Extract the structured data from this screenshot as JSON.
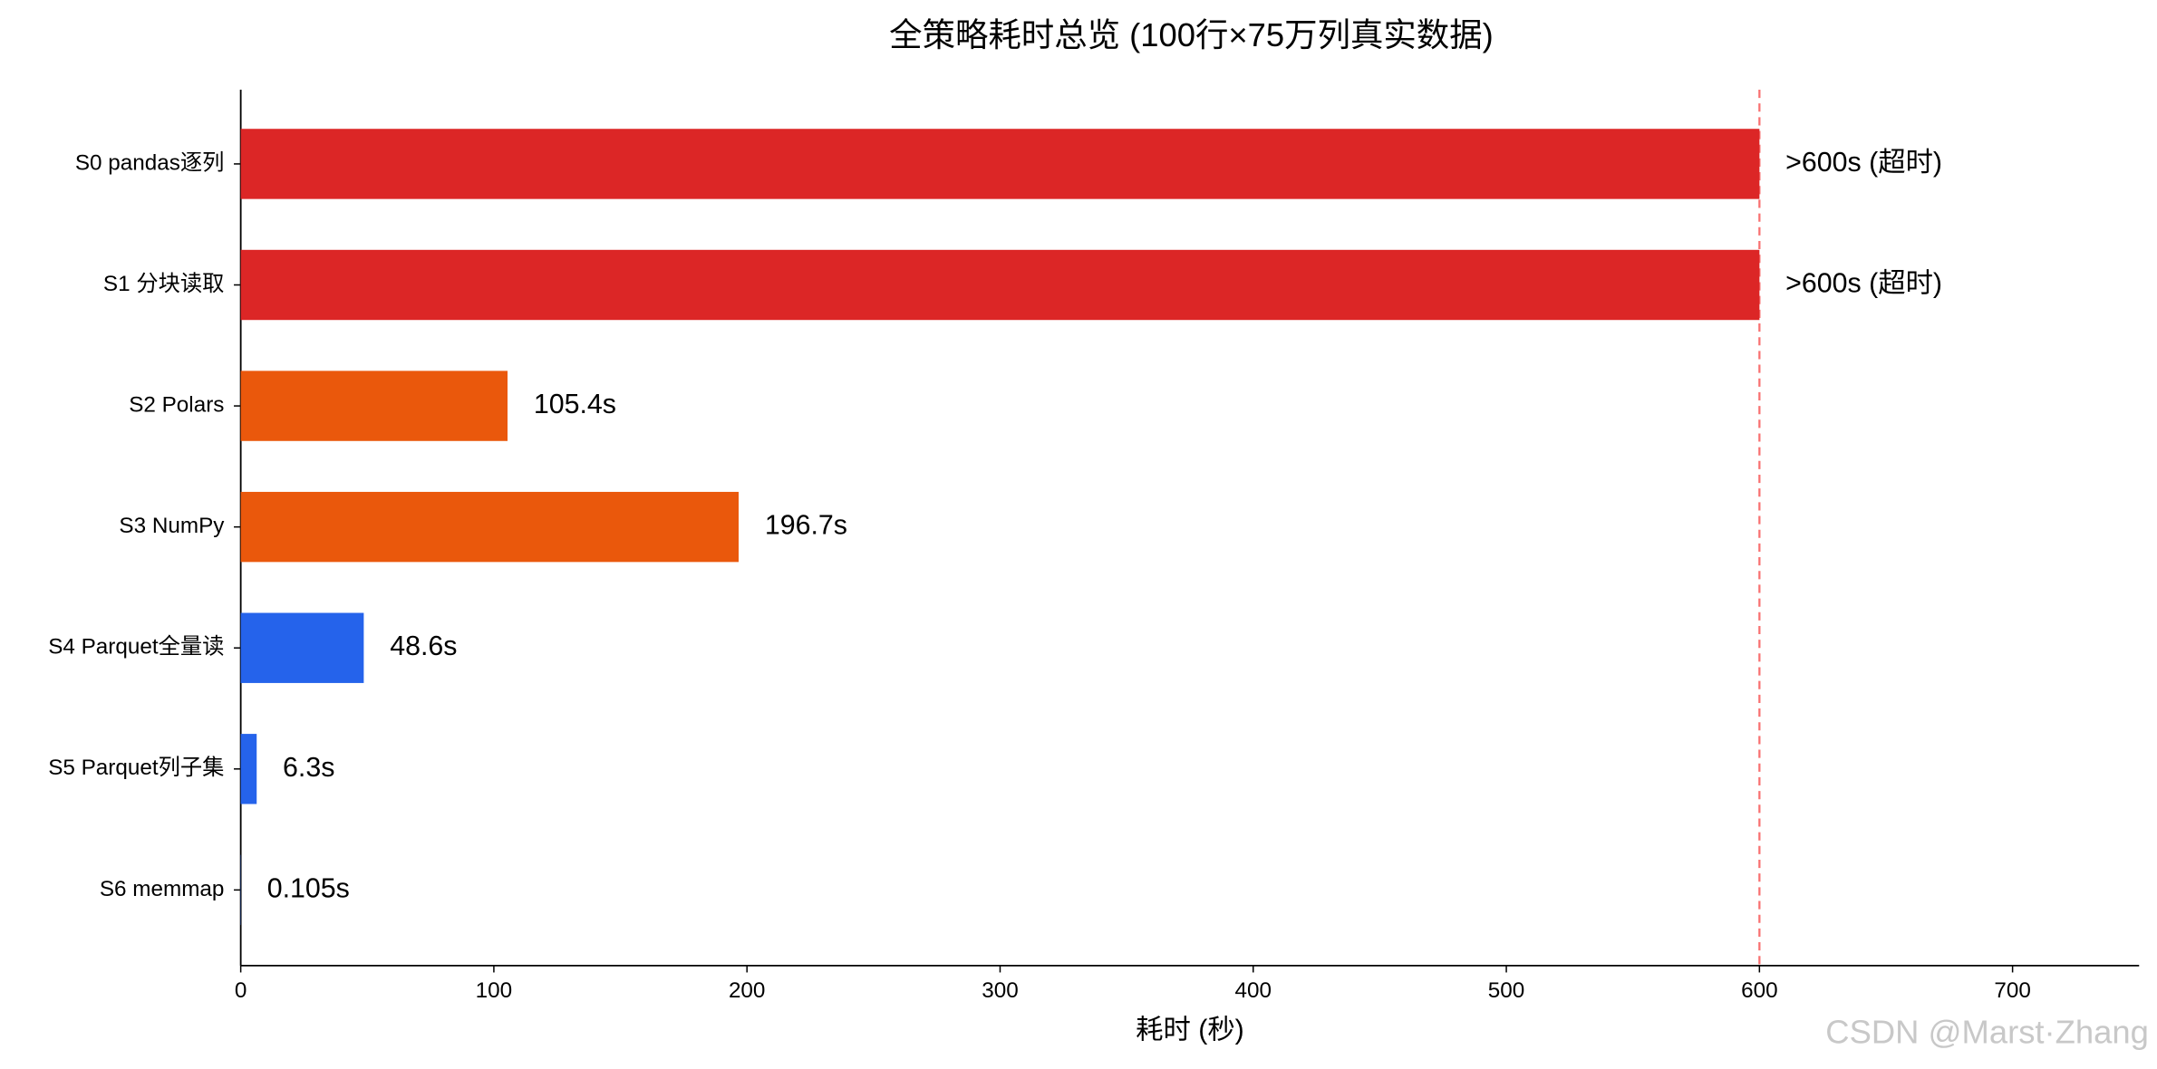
{
  "chart_data": {
    "type": "barh",
    "title": "全策略耗时总览 (100行×75万列真实数据)",
    "x_label": "耗时 (秒)",
    "categories": [
      "S0 pandas逐列",
      "S1 分块读取",
      "S2 Polars",
      "S3 NumPy",
      "S4 Parquet全量读",
      "S5 Parquet列子集",
      "S6 memmap"
    ],
    "values": [
      600,
      600,
      105.4,
      196.7,
      48.6,
      6.3,
      0.105
    ],
    "value_labels": [
      ">600s (超时)",
      ">600s (超时)",
      "105.4s",
      "196.7s",
      "48.6s",
      "6.3s",
      "0.105s"
    ],
    "colors": [
      "#dc2626",
      "#dc2626",
      "#ea580c",
      "#ea580c",
      "#2563eb",
      "#2563eb",
      "#2563eb"
    ],
    "xlim": [
      0,
      750
    ],
    "xticks": [
      0,
      100,
      200,
      300,
      400,
      500,
      600,
      700
    ],
    "vline": {
      "value": 600,
      "color": "#f87171"
    },
    "watermark": "CSDN @Marst·Zhang"
  }
}
